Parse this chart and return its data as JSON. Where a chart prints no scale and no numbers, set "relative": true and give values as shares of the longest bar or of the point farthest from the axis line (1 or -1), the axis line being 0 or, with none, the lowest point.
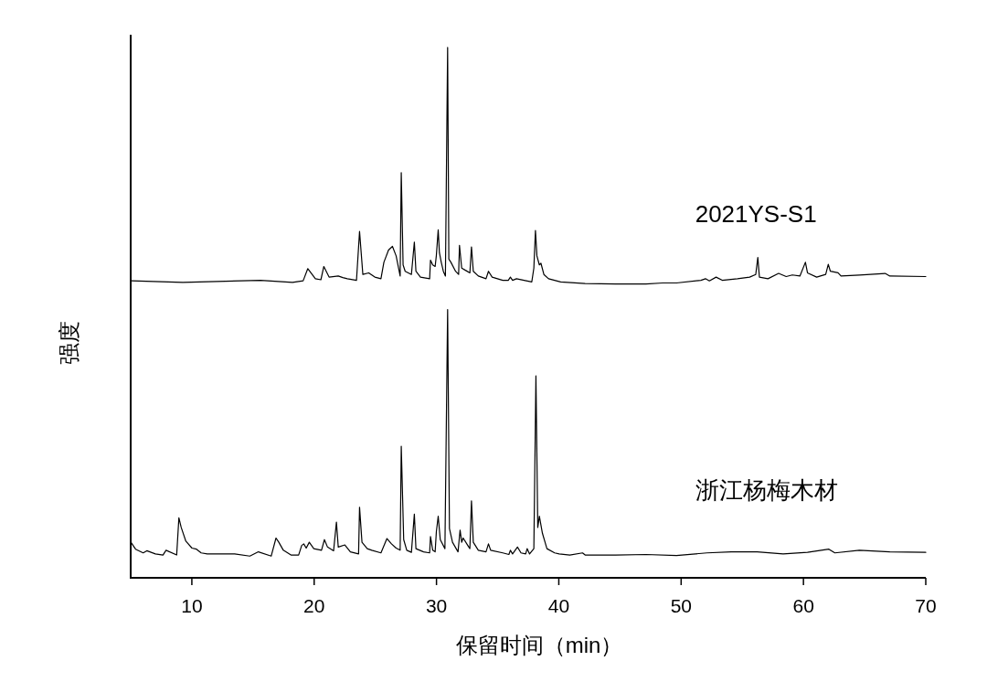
{
  "chart_data": {
    "type": "line",
    "xlabel": "保留时间（min）",
    "ylabel": "强度",
    "relative": true,
    "xlim": [
      5,
      70
    ],
    "xticks": [
      10,
      20,
      30,
      40,
      50,
      60,
      70
    ],
    "series": [
      {
        "name": "2021YS-S1",
        "color": "#000000",
        "x": [
          5.07,
          9.26,
          15.61,
          18.23,
          19.1,
          19.48,
          20.1,
          20.55,
          20.79,
          21.22,
          21.97,
          22.34,
          22.71,
          23.46,
          23.71,
          23.98,
          24.46,
          24.96,
          25.46,
          25.7,
          26.08,
          26.4,
          26.7,
          27.03,
          27.12,
          27.27,
          27.44,
          27.95,
          28.19,
          28.32,
          28.69,
          29.44,
          29.51,
          29.69,
          29.89,
          29.99,
          30.14,
          30.24,
          30.39,
          30.56,
          30.73,
          30.91,
          31.01,
          31.18,
          31.56,
          31.81,
          31.88,
          32.06,
          32.43,
          32.73,
          32.86,
          33.01,
          33.42,
          34.05,
          34.25,
          34.55,
          35.42,
          35.87,
          36.04,
          36.22,
          36.54,
          37.16,
          37.79,
          37.96,
          38.09,
          38.21,
          38.41,
          38.54,
          38.78,
          39.16,
          40.15,
          42.15,
          44.64,
          47.13,
          48.5,
          49.62,
          51.62,
          51.99,
          52.31,
          52.86,
          53.36,
          54.61,
          55.6,
          56.1,
          56.27,
          56.4,
          57.1,
          57.97,
          58.59,
          59.09,
          59.71,
          60.16,
          60.33,
          61.08,
          61.82,
          62.03,
          62.2,
          62.83,
          63.07,
          64.57,
          66.68,
          67.06,
          70.0
        ],
        "values": [
          0.56,
          0.557,
          0.561,
          0.557,
          0.56,
          0.583,
          0.564,
          0.562,
          0.587,
          0.567,
          0.569,
          0.566,
          0.564,
          0.561,
          0.653,
          0.572,
          0.575,
          0.567,
          0.564,
          0.595,
          0.618,
          0.625,
          0.607,
          0.569,
          0.764,
          0.59,
          0.578,
          0.572,
          0.633,
          0.578,
          0.567,
          0.564,
          0.599,
          0.59,
          0.587,
          0.608,
          0.656,
          0.613,
          0.595,
          0.578,
          0.569,
          1.0,
          0.601,
          0.595,
          0.578,
          0.572,
          0.627,
          0.584,
          0.579,
          0.575,
          0.624,
          0.578,
          0.569,
          0.564,
          0.578,
          0.567,
          0.561,
          0.561,
          0.567,
          0.561,
          0.564,
          0.561,
          0.558,
          0.584,
          0.655,
          0.607,
          0.59,
          0.593,
          0.572,
          0.564,
          0.558,
          0.555,
          0.554,
          0.554,
          0.556,
          0.556,
          0.561,
          0.564,
          0.56,
          0.567,
          0.561,
          0.564,
          0.567,
          0.572,
          0.604,
          0.567,
          0.564,
          0.574,
          0.568,
          0.571,
          0.569,
          0.595,
          0.575,
          0.567,
          0.572,
          0.591,
          0.578,
          0.575,
          0.569,
          0.571,
          0.574,
          0.569,
          0.568
        ]
      },
      {
        "name": "浙江杨梅木材",
        "color": "#000000",
        "x": [
          5.02,
          5.4,
          6.02,
          6.32,
          7.02,
          7.64,
          7.89,
          8.76,
          8.94,
          9.13,
          9.51,
          10.01,
          10.38,
          10.76,
          11.26,
          13.5,
          14.74,
          15.44,
          16.49,
          16.88,
          17.11,
          17.48,
          18.1,
          18.73,
          18.98,
          19.15,
          19.35,
          19.6,
          19.97,
          20.6,
          20.84,
          21.09,
          21.59,
          21.82,
          21.97,
          22.51,
          22.96,
          23.63,
          23.71,
          23.91,
          24.34,
          24.71,
          25.46,
          25.95,
          26.32,
          26.7,
          27.03,
          27.12,
          27.32,
          27.57,
          27.95,
          28.19,
          28.32,
          28.94,
          29.44,
          29.51,
          29.69,
          29.89,
          29.99,
          30.14,
          30.31,
          30.69,
          30.91,
          31.06,
          31.31,
          31.76,
          31.93,
          32.06,
          32.18,
          32.56,
          32.73,
          32.86,
          33.01,
          33.42,
          34.05,
          34.25,
          34.43,
          35.42,
          35.92,
          36.04,
          36.22,
          36.62,
          36.91,
          37.29,
          37.41,
          37.61,
          37.96,
          38.13,
          38.28,
          38.41,
          38.66,
          39.03,
          39.66,
          40.03,
          40.9,
          41.94,
          42.15,
          44.64,
          47.13,
          49.62,
          52.11,
          54.1,
          56.22,
          58.34,
          60.33,
          62.08,
          62.57,
          64.57,
          67.06,
          70.0
        ],
        "values": [
          0.067,
          0.054,
          0.047,
          0.051,
          0.045,
          0.043,
          0.052,
          0.043,
          0.113,
          0.095,
          0.069,
          0.056,
          0.054,
          0.047,
          0.045,
          0.045,
          0.041,
          0.049,
          0.041,
          0.075,
          0.067,
          0.052,
          0.043,
          0.043,
          0.061,
          0.064,
          0.056,
          0.067,
          0.055,
          0.052,
          0.072,
          0.058,
          0.051,
          0.105,
          0.058,
          0.062,
          0.049,
          0.045,
          0.133,
          0.067,
          0.055,
          0.052,
          0.047,
          0.074,
          0.064,
          0.056,
          0.052,
          0.248,
          0.072,
          0.052,
          0.048,
          0.12,
          0.055,
          0.049,
          0.047,
          0.078,
          0.052,
          0.049,
          0.087,
          0.116,
          0.072,
          0.055,
          0.506,
          0.093,
          0.067,
          0.049,
          0.09,
          0.067,
          0.075,
          0.061,
          0.055,
          0.145,
          0.067,
          0.052,
          0.049,
          0.064,
          0.052,
          0.047,
          0.044,
          0.052,
          0.045,
          0.058,
          0.047,
          0.045,
          0.055,
          0.045,
          0.055,
          0.381,
          0.095,
          0.116,
          0.084,
          0.055,
          0.047,
          0.045,
          0.043,
          0.047,
          0.043,
          0.043,
          0.044,
          0.042,
          0.047,
          0.049,
          0.049,
          0.045,
          0.048,
          0.054,
          0.047,
          0.052,
          0.049,
          0.048
        ]
      }
    ]
  }
}
